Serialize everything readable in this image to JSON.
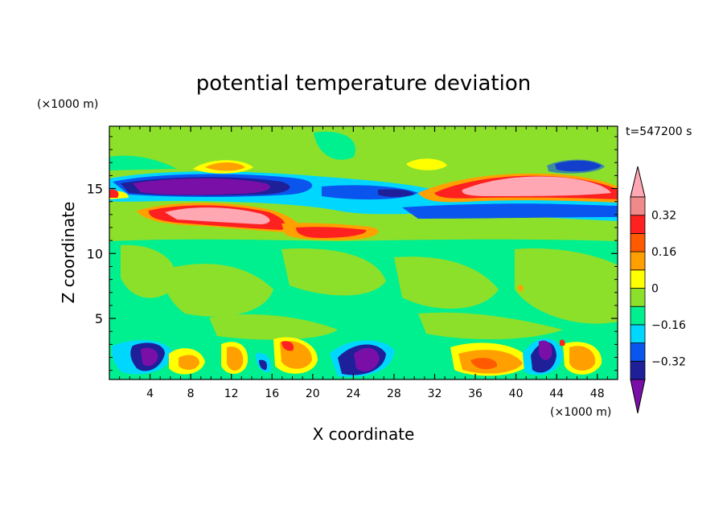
{
  "chart_data": {
    "type": "heatmap",
    "title": "potential temperature deviation",
    "xlabel": "X coordinate",
    "ylabel": "Z coordinate",
    "x_unit": "(×1000 m)",
    "y_unit": "(×1000 m)",
    "time_label": "t=547200 s",
    "xlim": [
      0,
      50
    ],
    "ylim": [
      0.3,
      19.8
    ],
    "x_ticks": [
      4,
      8,
      12,
      16,
      20,
      24,
      28,
      32,
      36,
      40,
      44,
      48
    ],
    "y_ticks": [
      5,
      10,
      15
    ],
    "colorbar": {
      "tick_labels": [
        "0.32",
        "0.16",
        "0",
        "−0.16",
        "−0.32"
      ],
      "tick_values": [
        0.32,
        0.16,
        0,
        -0.16,
        -0.32
      ],
      "levels": [
        -0.4,
        -0.32,
        -0.24,
        -0.16,
        -0.08,
        0,
        0.08,
        0.16,
        0.24,
        0.32,
        0.4
      ],
      "colors": [
        "#7a0fa8",
        "#1f1f9a",
        "#0a55ee",
        "#00d7ff",
        "#00f090",
        "#8de02a",
        "#ffff00",
        "#ffa000",
        "#ff5a00",
        "#ff2020",
        "#f08a8a",
        "#ffa8b4"
      ]
    },
    "regions": [
      {
        "level": 0.08,
        "x": [
          0,
          50
        ],
        "z": [
          14.8,
          19.8
        ],
        "note": "upper green band"
      },
      {
        "level": -0.12,
        "x": [
          1,
          22
        ],
        "z": [
          14.2,
          16.0
        ]
      },
      {
        "level": -0.3,
        "x": [
          3,
          17
        ],
        "z": [
          14.4,
          15.8
        ]
      },
      {
        "level": -0.4,
        "x": [
          5,
          13
        ],
        "z": [
          14.6,
          15.6
        ]
      },
      {
        "level": 0.3,
        "x": [
          2,
          18
        ],
        "z": [
          12.3,
          14.0
        ]
      },
      {
        "level": 0.4,
        "x": [
          6,
          15
        ],
        "z": [
          12.6,
          13.7
        ]
      },
      {
        "level": 0.3,
        "x": [
          17,
          27
        ],
        "z": [
          11.0,
          12.0
        ]
      },
      {
        "level": 0.3,
        "x": [
          30,
          50
        ],
        "z": [
          14.0,
          16.3
        ]
      },
      {
        "level": 0.4,
        "x": [
          34,
          49
        ],
        "z": [
          14.5,
          16.0
        ]
      },
      {
        "level": -0.3,
        "x": [
          44,
          48
        ],
        "z": [
          16.3,
          17.2
        ]
      },
      {
        "level": 0.2,
        "x": [
          10,
          14
        ],
        "z": [
          16.6,
          17.6
        ]
      },
      {
        "level": -0.3,
        "x": [
          2.5,
          6
        ],
        "z": [
          0.8,
          2.8
        ]
      },
      {
        "level": -0.3,
        "x": [
          23,
          27
        ],
        "z": [
          0.6,
          3.0
        ]
      },
      {
        "level": -0.3,
        "x": [
          40.5,
          43.5
        ],
        "z": [
          0.6,
          3.1
        ]
      },
      {
        "level": 0.2,
        "x": [
          6,
          9
        ],
        "z": [
          0.8,
          2.5
        ]
      },
      {
        "level": 0.2,
        "x": [
          11,
          13
        ],
        "z": [
          0.6,
          2.8
        ]
      },
      {
        "level": 0.2,
        "x": [
          16.5,
          20
        ],
        "z": [
          0.6,
          3.0
        ]
      },
      {
        "level": 0.2,
        "x": [
          34,
          40
        ],
        "z": [
          0.5,
          2.8
        ]
      },
      {
        "level": 0.2,
        "x": [
          44,
          48
        ],
        "z": [
          0.5,
          3.0
        ]
      }
    ]
  }
}
